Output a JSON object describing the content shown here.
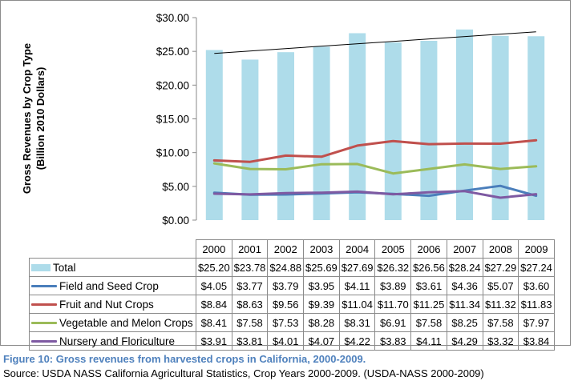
{
  "chart_data": {
    "type": "bar+line",
    "categories": [
      "2000",
      "2001",
      "2002",
      "2003",
      "2004",
      "2005",
      "2006",
      "2007",
      "2008",
      "2009"
    ],
    "ylabel_lines": [
      "Gross Revenues by Crop Type",
      "(Billion 2010 Dollars)"
    ],
    "ylim": [
      0,
      30
    ],
    "yticks": [
      "$0.00",
      "$5.00",
      "$10.00",
      "$15.00",
      "$20.00",
      "$25.00",
      "$30.00"
    ],
    "ytick_values": [
      0,
      5,
      10,
      15,
      20,
      25,
      30
    ],
    "trendline": {
      "shown": true,
      "from_year": "2000",
      "to_year": "2009",
      "start": 24.7,
      "end": 27.9,
      "color": "#000000"
    },
    "series": [
      {
        "name": "Total",
        "kind": "bar",
        "color": "#aedcea",
        "values": [
          25.2,
          23.78,
          24.88,
          25.69,
          27.69,
          26.32,
          26.56,
          28.24,
          27.29,
          27.24
        ],
        "labels": [
          "$25.20",
          "$23.78",
          "$24.88",
          "$25.69",
          "$27.69",
          "$26.32",
          "$26.56",
          "$28.24",
          "$27.29",
          "$27.24"
        ]
      },
      {
        "name": "Field and Seed Crop",
        "kind": "line",
        "color": "#4a7ebb",
        "values": [
          4.05,
          3.77,
          3.79,
          3.95,
          4.11,
          3.89,
          3.61,
          4.36,
          5.07,
          3.6
        ],
        "labels": [
          "$4.05",
          "$3.77",
          "$3.79",
          "$3.95",
          "$4.11",
          "$3.89",
          "$3.61",
          "$4.36",
          "$5.07",
          "$3.60"
        ]
      },
      {
        "name": "Fruit and Nut Crops",
        "kind": "line",
        "color": "#c0504d",
        "values": [
          8.84,
          8.63,
          9.56,
          9.39,
          11.04,
          11.7,
          11.25,
          11.34,
          11.32,
          11.83
        ],
        "labels": [
          "$8.84",
          "$8.63",
          "$9.56",
          "$9.39",
          "$11.04",
          "$11.70",
          "$11.25",
          "$11.34",
          "$11.32",
          "$11.83"
        ]
      },
      {
        "name": "Vegetable and Melon Crops",
        "kind": "line",
        "color": "#9bbb59",
        "values": [
          8.41,
          7.58,
          7.53,
          8.28,
          8.31,
          6.91,
          7.58,
          8.25,
          7.58,
          7.97
        ],
        "labels": [
          "$8.41",
          "$7.58",
          "$7.53",
          "$8.28",
          "$8.31",
          "$6.91",
          "$7.58",
          "$8.25",
          "$7.58",
          "$7.97"
        ]
      },
      {
        "name": "Nursery and Floriculture",
        "kind": "line",
        "color": "#7e5aa2",
        "values": [
          3.91,
          3.81,
          4.01,
          4.07,
          4.22,
          3.83,
          4.11,
          4.29,
          3.32,
          3.84
        ],
        "labels": [
          "$3.91",
          "$3.81",
          "$4.01",
          "$4.07",
          "$4.22",
          "$3.83",
          "$4.11",
          "$4.29",
          "$3.32",
          "$3.84"
        ]
      }
    ]
  },
  "caption": "Figure 10: Gross revenues from harvested crops in California, 2000-2009.",
  "source": "Source: USDA NASS California Agricultural Statistics, Crop Years 2000-2009. (USDA-NASS 2000-2009)"
}
